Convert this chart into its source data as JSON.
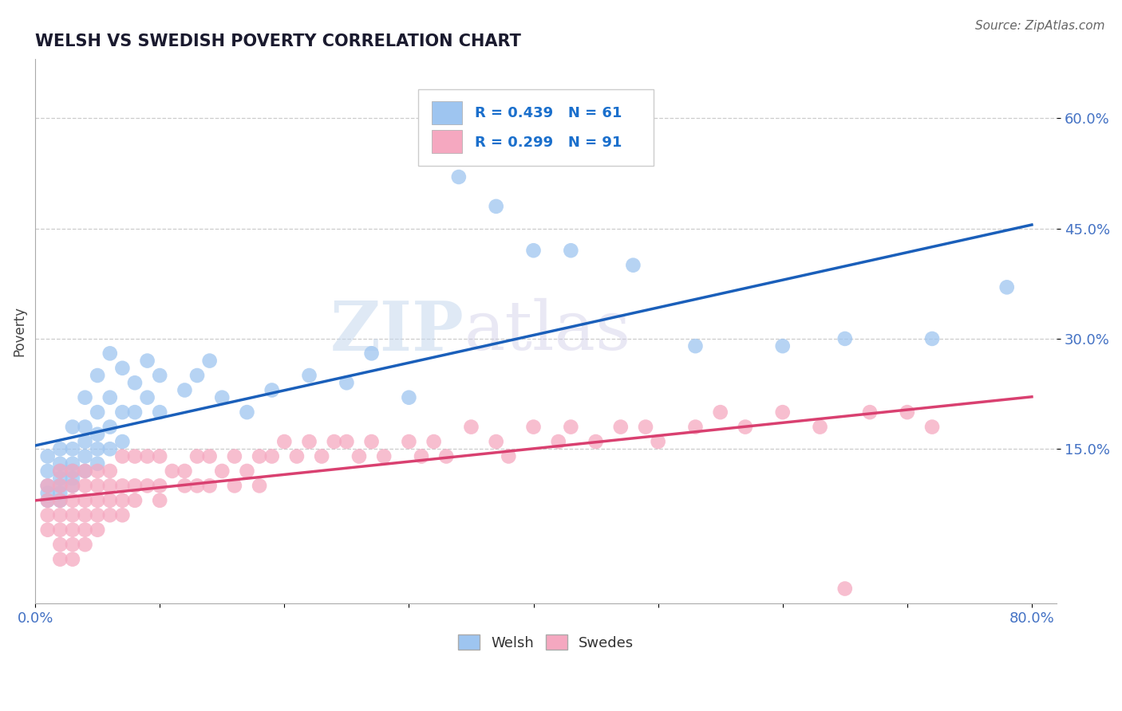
{
  "title": "WELSH VS SWEDISH POVERTY CORRELATION CHART",
  "source_text": "Source: ZipAtlas.com",
  "ylabel": "Poverty",
  "xlim": [
    0.0,
    0.82
  ],
  "ylim": [
    -0.06,
    0.68
  ],
  "xtick_positions": [
    0.0,
    0.1,
    0.2,
    0.3,
    0.4,
    0.5,
    0.6,
    0.7,
    0.8
  ],
  "xticklabels": [
    "0.0%",
    "",
    "",
    "",
    "",
    "",
    "",
    "",
    "80.0%"
  ],
  "ytick_positions": [
    0.15,
    0.3,
    0.45,
    0.6
  ],
  "yticklabels": [
    "15.0%",
    "30.0%",
    "45.0%",
    "60.0%"
  ],
  "welsh_color": "#9ec5f0",
  "swedes_color": "#f5a8c0",
  "welsh_line_color": "#1a5fba",
  "swedes_line_color": "#d94070",
  "welsh_R": 0.439,
  "welsh_N": 61,
  "swedes_R": 0.299,
  "swedes_N": 91,
  "watermark_zip": "ZIP",
  "watermark_atlas": "atlas",
  "bg_color": "#ffffff",
  "grid_color": "#cccccc",
  "title_color": "#1a1a2e",
  "axis_label_color": "#4472c4",
  "legend_text_color": "#1a6fcc",
  "welsh_points": [
    [
      0.01,
      0.14
    ],
    [
      0.01,
      0.12
    ],
    [
      0.01,
      0.1
    ],
    [
      0.01,
      0.09
    ],
    [
      0.01,
      0.08
    ],
    [
      0.02,
      0.15
    ],
    [
      0.02,
      0.13
    ],
    [
      0.02,
      0.12
    ],
    [
      0.02,
      0.11
    ],
    [
      0.02,
      0.1
    ],
    [
      0.02,
      0.09
    ],
    [
      0.02,
      0.08
    ],
    [
      0.03,
      0.18
    ],
    [
      0.03,
      0.15
    ],
    [
      0.03,
      0.13
    ],
    [
      0.03,
      0.12
    ],
    [
      0.03,
      0.11
    ],
    [
      0.03,
      0.1
    ],
    [
      0.04,
      0.22
    ],
    [
      0.04,
      0.18
    ],
    [
      0.04,
      0.16
    ],
    [
      0.04,
      0.14
    ],
    [
      0.04,
      0.12
    ],
    [
      0.05,
      0.25
    ],
    [
      0.05,
      0.2
    ],
    [
      0.05,
      0.17
    ],
    [
      0.05,
      0.15
    ],
    [
      0.05,
      0.13
    ],
    [
      0.06,
      0.28
    ],
    [
      0.06,
      0.22
    ],
    [
      0.06,
      0.18
    ],
    [
      0.06,
      0.15
    ],
    [
      0.07,
      0.26
    ],
    [
      0.07,
      0.2
    ],
    [
      0.07,
      0.16
    ],
    [
      0.08,
      0.24
    ],
    [
      0.08,
      0.2
    ],
    [
      0.09,
      0.27
    ],
    [
      0.09,
      0.22
    ],
    [
      0.1,
      0.25
    ],
    [
      0.1,
      0.2
    ],
    [
      0.12,
      0.23
    ],
    [
      0.13,
      0.25
    ],
    [
      0.14,
      0.27
    ],
    [
      0.15,
      0.22
    ],
    [
      0.17,
      0.2
    ],
    [
      0.19,
      0.23
    ],
    [
      0.22,
      0.25
    ],
    [
      0.25,
      0.24
    ],
    [
      0.27,
      0.28
    ],
    [
      0.3,
      0.22
    ],
    [
      0.34,
      0.52
    ],
    [
      0.37,
      0.48
    ],
    [
      0.4,
      0.42
    ],
    [
      0.43,
      0.42
    ],
    [
      0.48,
      0.4
    ],
    [
      0.53,
      0.29
    ],
    [
      0.6,
      0.29
    ],
    [
      0.65,
      0.3
    ],
    [
      0.72,
      0.3
    ],
    [
      0.78,
      0.37
    ]
  ],
  "swedes_points": [
    [
      0.01,
      0.1
    ],
    [
      0.01,
      0.08
    ],
    [
      0.01,
      0.06
    ],
    [
      0.01,
      0.04
    ],
    [
      0.02,
      0.12
    ],
    [
      0.02,
      0.1
    ],
    [
      0.02,
      0.08
    ],
    [
      0.02,
      0.06
    ],
    [
      0.02,
      0.04
    ],
    [
      0.02,
      0.02
    ],
    [
      0.02,
      0.0
    ],
    [
      0.03,
      0.12
    ],
    [
      0.03,
      0.1
    ],
    [
      0.03,
      0.08
    ],
    [
      0.03,
      0.06
    ],
    [
      0.03,
      0.04
    ],
    [
      0.03,
      0.02
    ],
    [
      0.03,
      0.0
    ],
    [
      0.04,
      0.12
    ],
    [
      0.04,
      0.1
    ],
    [
      0.04,
      0.08
    ],
    [
      0.04,
      0.06
    ],
    [
      0.04,
      0.04
    ],
    [
      0.04,
      0.02
    ],
    [
      0.05,
      0.12
    ],
    [
      0.05,
      0.1
    ],
    [
      0.05,
      0.08
    ],
    [
      0.05,
      0.06
    ],
    [
      0.05,
      0.04
    ],
    [
      0.06,
      0.12
    ],
    [
      0.06,
      0.1
    ],
    [
      0.06,
      0.08
    ],
    [
      0.06,
      0.06
    ],
    [
      0.07,
      0.14
    ],
    [
      0.07,
      0.1
    ],
    [
      0.07,
      0.08
    ],
    [
      0.07,
      0.06
    ],
    [
      0.08,
      0.14
    ],
    [
      0.08,
      0.1
    ],
    [
      0.08,
      0.08
    ],
    [
      0.09,
      0.14
    ],
    [
      0.09,
      0.1
    ],
    [
      0.1,
      0.14
    ],
    [
      0.1,
      0.1
    ],
    [
      0.1,
      0.08
    ],
    [
      0.11,
      0.12
    ],
    [
      0.12,
      0.12
    ],
    [
      0.12,
      0.1
    ],
    [
      0.13,
      0.14
    ],
    [
      0.13,
      0.1
    ],
    [
      0.14,
      0.14
    ],
    [
      0.14,
      0.1
    ],
    [
      0.15,
      0.12
    ],
    [
      0.16,
      0.14
    ],
    [
      0.16,
      0.1
    ],
    [
      0.17,
      0.12
    ],
    [
      0.18,
      0.14
    ],
    [
      0.18,
      0.1
    ],
    [
      0.19,
      0.14
    ],
    [
      0.2,
      0.16
    ],
    [
      0.21,
      0.14
    ],
    [
      0.22,
      0.16
    ],
    [
      0.23,
      0.14
    ],
    [
      0.24,
      0.16
    ],
    [
      0.25,
      0.16
    ],
    [
      0.26,
      0.14
    ],
    [
      0.27,
      0.16
    ],
    [
      0.28,
      0.14
    ],
    [
      0.3,
      0.16
    ],
    [
      0.31,
      0.14
    ],
    [
      0.32,
      0.16
    ],
    [
      0.33,
      0.14
    ],
    [
      0.35,
      0.18
    ],
    [
      0.37,
      0.16
    ],
    [
      0.38,
      0.14
    ],
    [
      0.4,
      0.18
    ],
    [
      0.42,
      0.16
    ],
    [
      0.43,
      0.18
    ],
    [
      0.45,
      0.16
    ],
    [
      0.47,
      0.18
    ],
    [
      0.49,
      0.18
    ],
    [
      0.5,
      0.16
    ],
    [
      0.53,
      0.18
    ],
    [
      0.55,
      0.2
    ],
    [
      0.57,
      0.18
    ],
    [
      0.6,
      0.2
    ],
    [
      0.63,
      0.18
    ],
    [
      0.65,
      -0.04
    ],
    [
      0.67,
      0.2
    ],
    [
      0.7,
      0.2
    ],
    [
      0.72,
      0.18
    ]
  ]
}
